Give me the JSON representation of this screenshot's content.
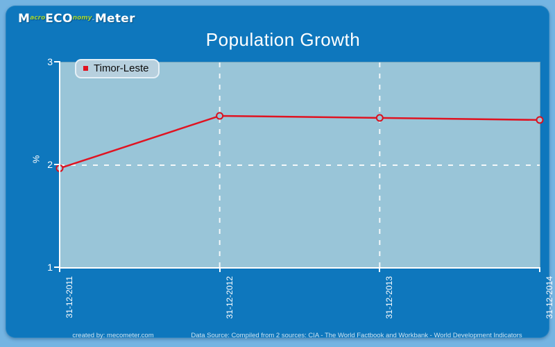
{
  "header": {
    "logo": {
      "m": "M",
      "acro": "acro",
      "eco": "ECO",
      "nomy": "nomy",
      "sep": "-",
      "meter": "Meter"
    },
    "title": "Population Growth"
  },
  "legend": {
    "label": "Timor-Leste"
  },
  "axes": {
    "y_label": "%",
    "y_ticks": [
      "3",
      "2",
      "1"
    ],
    "x_ticks": [
      "31-12-2011",
      "31-12-2012",
      "31-12-2013",
      "31-12-2014"
    ]
  },
  "footer": {
    "created_by": "created by: mecometer.com",
    "data_source": "Data Source: Compiled from 2 sources: CIA - The World Factbook and Workbank - World Development Indicators"
  },
  "colors": {
    "page_bg": "#74b4e2",
    "panel_bg": "#0e77bd",
    "plot_bg": "#99c5d8",
    "line": "#e01321",
    "marker_stroke": "#d8111f",
    "gridline": "#f4f8fa",
    "legend_bg": "#b7d0de",
    "footer_text": "#cfe4f2",
    "logo_accent": "#9fd43a"
  },
  "chart_data": {
    "type": "line",
    "title": "Population Growth",
    "xlabel": "",
    "ylabel": "%",
    "x": [
      "31-12-2011",
      "31-12-2012",
      "31-12-2013",
      "31-12-2014"
    ],
    "series": [
      {
        "name": "Timor-Leste",
        "values": [
          1.97,
          2.48,
          2.46,
          2.44
        ]
      }
    ],
    "ylim": [
      1,
      3
    ],
    "y_tick_values": [
      3,
      2,
      1
    ],
    "grid": "dashed",
    "legend_position": "top-left",
    "marker": "open-circle"
  }
}
